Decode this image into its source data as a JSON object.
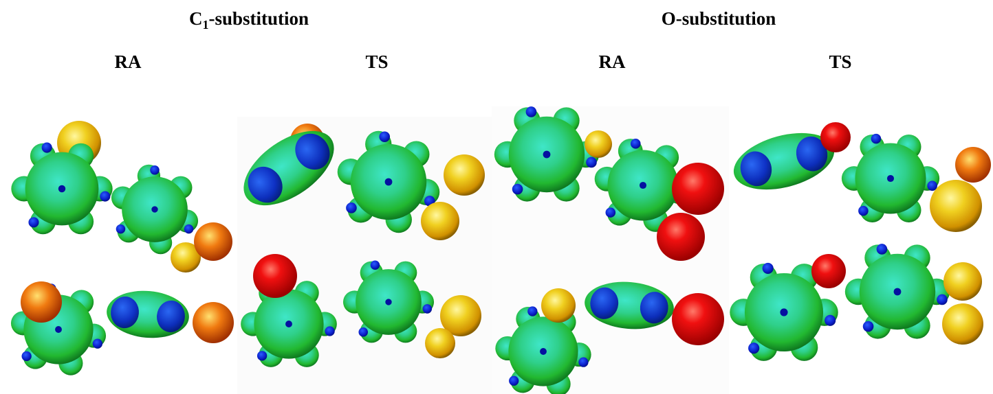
{
  "groups": [
    {
      "title": {
        "main": "C",
        "subscript": "1",
        "rest": "-substitution"
      },
      "columns": [
        "RA",
        "TS"
      ]
    },
    {
      "title": {
        "main": "O-substitution"
      },
      "columns": [
        "RA",
        "TS"
      ]
    }
  ]
}
